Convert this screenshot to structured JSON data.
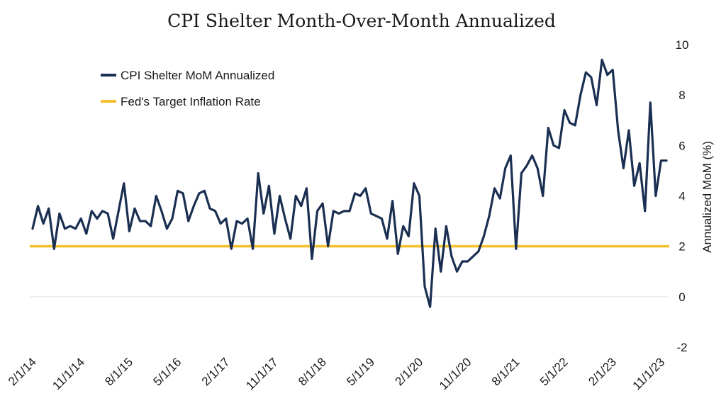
{
  "chart_data": {
    "type": "line",
    "title": "CPI Shelter Month-Over-Month Annualized",
    "xlabel": "",
    "ylabel": "Annualized MoM (%)",
    "ylim": [
      -2,
      10
    ],
    "y_ticks": [
      "10",
      "8",
      "6",
      "4",
      "2",
      "0",
      "-2"
    ],
    "x_ticks": [
      "2/1/14",
      "11/1/14",
      "8/1/15",
      "5/1/16",
      "2/1/17",
      "11/1/17",
      "8/1/18",
      "5/1/19",
      "2/1/20",
      "11/1/20",
      "8/1/21",
      "5/1/22",
      "2/1/23",
      "11/1/23"
    ],
    "x_start": "2/1/14",
    "x_end": "12/1/23",
    "legend_position": "top-left",
    "grid": false,
    "series": [
      {
        "name": "CPI Shelter MoM Annualized",
        "color": "#1b2f52",
        "values": [
          2.7,
          3.6,
          2.9,
          3.5,
          1.9,
          3.3,
          2.7,
          2.8,
          2.7,
          3.1,
          2.5,
          3.4,
          3.1,
          3.4,
          3.3,
          2.3,
          3.4,
          4.5,
          2.6,
          3.5,
          3.0,
          3.0,
          2.8,
          4.0,
          3.4,
          2.7,
          3.1,
          4.2,
          4.1,
          3.0,
          3.6,
          4.1,
          4.2,
          3.5,
          3.4,
          2.9,
          3.1,
          1.9,
          3.0,
          2.9,
          3.1,
          1.9,
          4.9,
          3.3,
          4.4,
          2.5,
          4.0,
          3.1,
          2.3,
          4.0,
          3.6,
          4.3,
          1.5,
          3.4,
          3.7,
          2.0,
          3.4,
          3.3,
          3.4,
          3.4,
          4.1,
          4.0,
          4.3,
          3.3,
          3.2,
          3.1,
          2.3,
          3.8,
          1.7,
          2.8,
          2.4,
          4.5,
          4.0,
          0.4,
          -0.4,
          2.7,
          1.0,
          2.8,
          1.6,
          1.0,
          1.4,
          1.4,
          1.6,
          1.8,
          2.4,
          3.2,
          4.3,
          3.9,
          5.1,
          5.6,
          1.9,
          4.9,
          5.2,
          5.6,
          5.1,
          4.0,
          6.7,
          6.0,
          5.9,
          7.4,
          6.9,
          6.8,
          8.0,
          8.9,
          8.7,
          7.6,
          9.4,
          8.8,
          9.0,
          6.6,
          5.1,
          6.6,
          4.4,
          5.3,
          3.4,
          7.7,
          4.0,
          5.4,
          5.4
        ]
      },
      {
        "name": "Fed's Target Inflation Rate",
        "color": "#f5c130",
        "values": [
          2
        ]
      }
    ]
  }
}
